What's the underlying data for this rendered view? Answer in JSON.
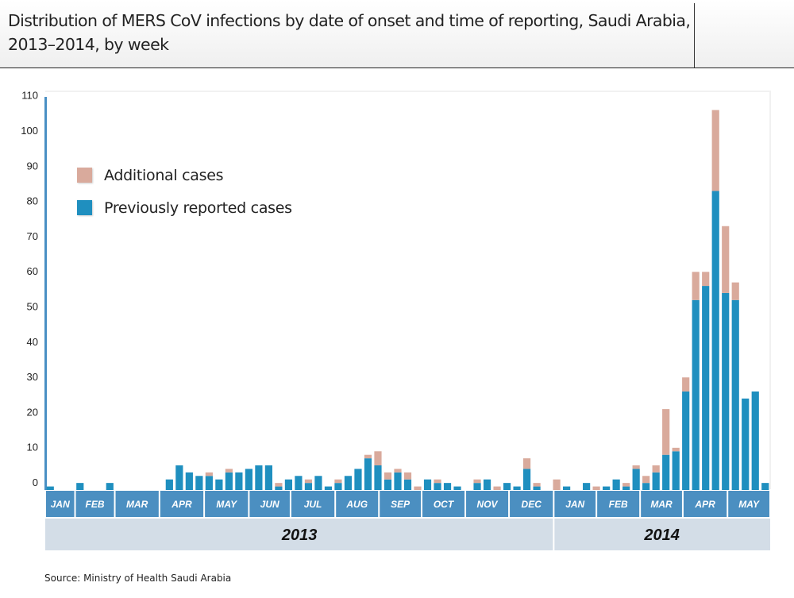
{
  "header": {
    "title": "Distribution of MERS CoV infections by date of onset and time of reporting, Saudi Arabia, 2013–2014, by week"
  },
  "source": "Source: Ministry of Health Saudi Arabia",
  "colors": {
    "additional": "#d9aa9c",
    "previously_reported": "#1f8fbf",
    "month_band": "#4b8fc1",
    "year_band": "#d3dde7",
    "axis": "#4a90c4"
  },
  "chart_data": {
    "type": "bar",
    "stacked": true,
    "title": "Distribution of MERS CoV infections by date of onset and time of reporting, Saudi Arabia, 2013–2014, by week",
    "xlabel": "",
    "ylabel": "",
    "ylim": [
      0,
      110
    ],
    "yticks": [
      0,
      10,
      20,
      30,
      40,
      50,
      60,
      70,
      80,
      90,
      100,
      110
    ],
    "grid": false,
    "legend_position": "top-left",
    "legend": [
      {
        "name": "Additional cases",
        "key": "additional"
      },
      {
        "name": "Previously reported cases",
        "key": "previously_reported"
      }
    ],
    "x_unit": "week",
    "weeks_count": 73,
    "series": [
      {
        "name": "Previously reported cases",
        "key": "previously_reported",
        "values": [
          1,
          0,
          0,
          2,
          0,
          0,
          2,
          0,
          0,
          0,
          0,
          0,
          3,
          7,
          5,
          4,
          4,
          3,
          5,
          5,
          6,
          7,
          7,
          1,
          3,
          4,
          2,
          4,
          1,
          2,
          4,
          6,
          9,
          7,
          3,
          5,
          3,
          0,
          3,
          2,
          2,
          1,
          0,
          2,
          3,
          0,
          2,
          1,
          6,
          1,
          0,
          0,
          1,
          0,
          2,
          0,
          1,
          3,
          1,
          6,
          2,
          5,
          10,
          11,
          28,
          54,
          58,
          85,
          56,
          54,
          26,
          28,
          2
        ]
      },
      {
        "name": "Additional cases",
        "key": "additional",
        "values": [
          0,
          0,
          0,
          0,
          0,
          0,
          0,
          0,
          0,
          0,
          0,
          0,
          0,
          0,
          0,
          0,
          1,
          0,
          1,
          0,
          0,
          0,
          0,
          1,
          0,
          0,
          1,
          0,
          0,
          1,
          0,
          0,
          1,
          4,
          2,
          1,
          2,
          1,
          0,
          1,
          0,
          0,
          0,
          1,
          0,
          1,
          0,
          0,
          3,
          1,
          0,
          3,
          0,
          0,
          0,
          1,
          0,
          0,
          1,
          1,
          2,
          2,
          13,
          1,
          4,
          8,
          4,
          23,
          19,
          5,
          0,
          0,
          0
        ]
      }
    ],
    "months": [
      {
        "label": "JAN",
        "year": "2013",
        "week_start": 0,
        "week_end": 3
      },
      {
        "label": "FEB",
        "year": "2013",
        "week_start": 3,
        "week_end": 7
      },
      {
        "label": "MAR",
        "year": "2013",
        "week_start": 7,
        "week_end": 11.5
      },
      {
        "label": "APR",
        "year": "2013",
        "week_start": 11.5,
        "week_end": 16
      },
      {
        "label": "MAY",
        "year": "2013",
        "week_start": 16,
        "week_end": 20.5
      },
      {
        "label": "JUN",
        "year": "2013",
        "week_start": 20.5,
        "week_end": 24.7
      },
      {
        "label": "JUL",
        "year": "2013",
        "week_start": 24.7,
        "week_end": 29.2
      },
      {
        "label": "AUG",
        "year": "2013",
        "week_start": 29.2,
        "week_end": 33.6
      },
      {
        "label": "SEP",
        "year": "2013",
        "week_start": 33.6,
        "week_end": 37.9
      },
      {
        "label": "OCT",
        "year": "2013",
        "week_start": 37.9,
        "week_end": 42.3
      },
      {
        "label": "NOV",
        "year": "2013",
        "week_start": 42.3,
        "week_end": 46.7
      },
      {
        "label": "DEC",
        "year": "2013",
        "week_start": 46.7,
        "week_end": 51.2
      },
      {
        "label": "JAN",
        "year": "2014",
        "week_start": 51.2,
        "week_end": 55.5
      },
      {
        "label": "FEB",
        "year": "2014",
        "week_start": 55.5,
        "week_end": 59.9
      },
      {
        "label": "MAR",
        "year": "2014",
        "week_start": 59.9,
        "week_end": 64.2
      },
      {
        "label": "APR",
        "year": "2014",
        "week_start": 64.2,
        "week_end": 68.7
      },
      {
        "label": "MAY",
        "year": "2014",
        "week_start": 68.7,
        "week_end": 73
      }
    ],
    "years": [
      {
        "label": "2013",
        "week_start": 0,
        "week_end": 51.2
      },
      {
        "label": "2014",
        "week_start": 51.2,
        "week_end": 73
      }
    ]
  }
}
